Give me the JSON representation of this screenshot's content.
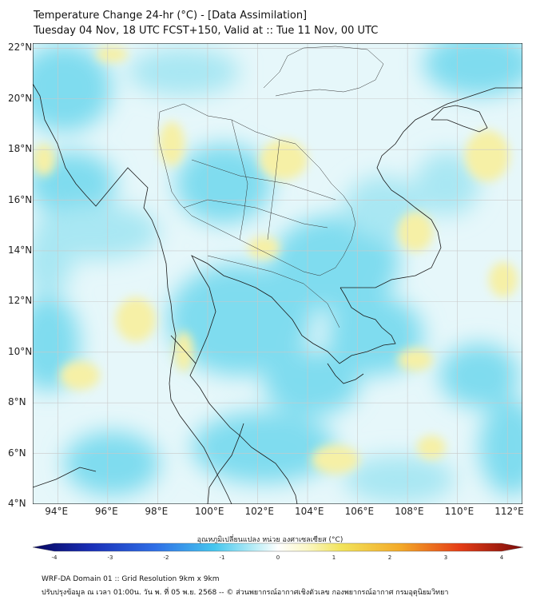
{
  "title": {
    "line1": "Temperature Change 24-hr (°C) - [Data Assimilation]",
    "line2": "Tuesday 04 Nov, 18 UTC FCST+150, Valid at :: Tue 11 Nov, 00 UTC"
  },
  "map": {
    "lon_range": [
      93,
      112.6
    ],
    "lat_range": [
      4,
      22.2
    ],
    "lon_ticks": [
      "94°E",
      "96°E",
      "98°E",
      "100°E",
      "102°E",
      "104°E",
      "106°E",
      "108°E",
      "110°E",
      "112°E"
    ],
    "lat_ticks": [
      "22°N",
      "20°N",
      "18°N",
      "16°N",
      "14°N",
      "12°N",
      "10°N",
      "8°N",
      "6°N",
      "4°N"
    ],
    "field_colors": {
      "background": "#e8f8fb",
      "cool": "#5fd3ec",
      "slightly_cool": "#a9e7f3",
      "warm": "#f7f0a8"
    }
  },
  "colorbar": {
    "label": "อุณหภูมิเปลี่ยนแปลง หน่วย องศาเซลเซียส (°C)",
    "ticks": [
      "-4",
      "-3",
      "-2",
      "-1",
      "0",
      "1",
      "2",
      "3",
      "4"
    ],
    "range": [
      -4,
      4
    ]
  },
  "footer": {
    "line1": "WRF-DA Domain 01 :: Grid Resolution 9km x 9km",
    "line2": "ปรับปรุงข้อมูล ณ เวลา 01:00น. วัน พ. ที่ 05 พ.ย. 2568 -- © ส่วนพยากรณ์อากาศเชิงตัวเลข กองพยากรณ์อากาศ กรมอุตุนิยมวิทยา"
  }
}
